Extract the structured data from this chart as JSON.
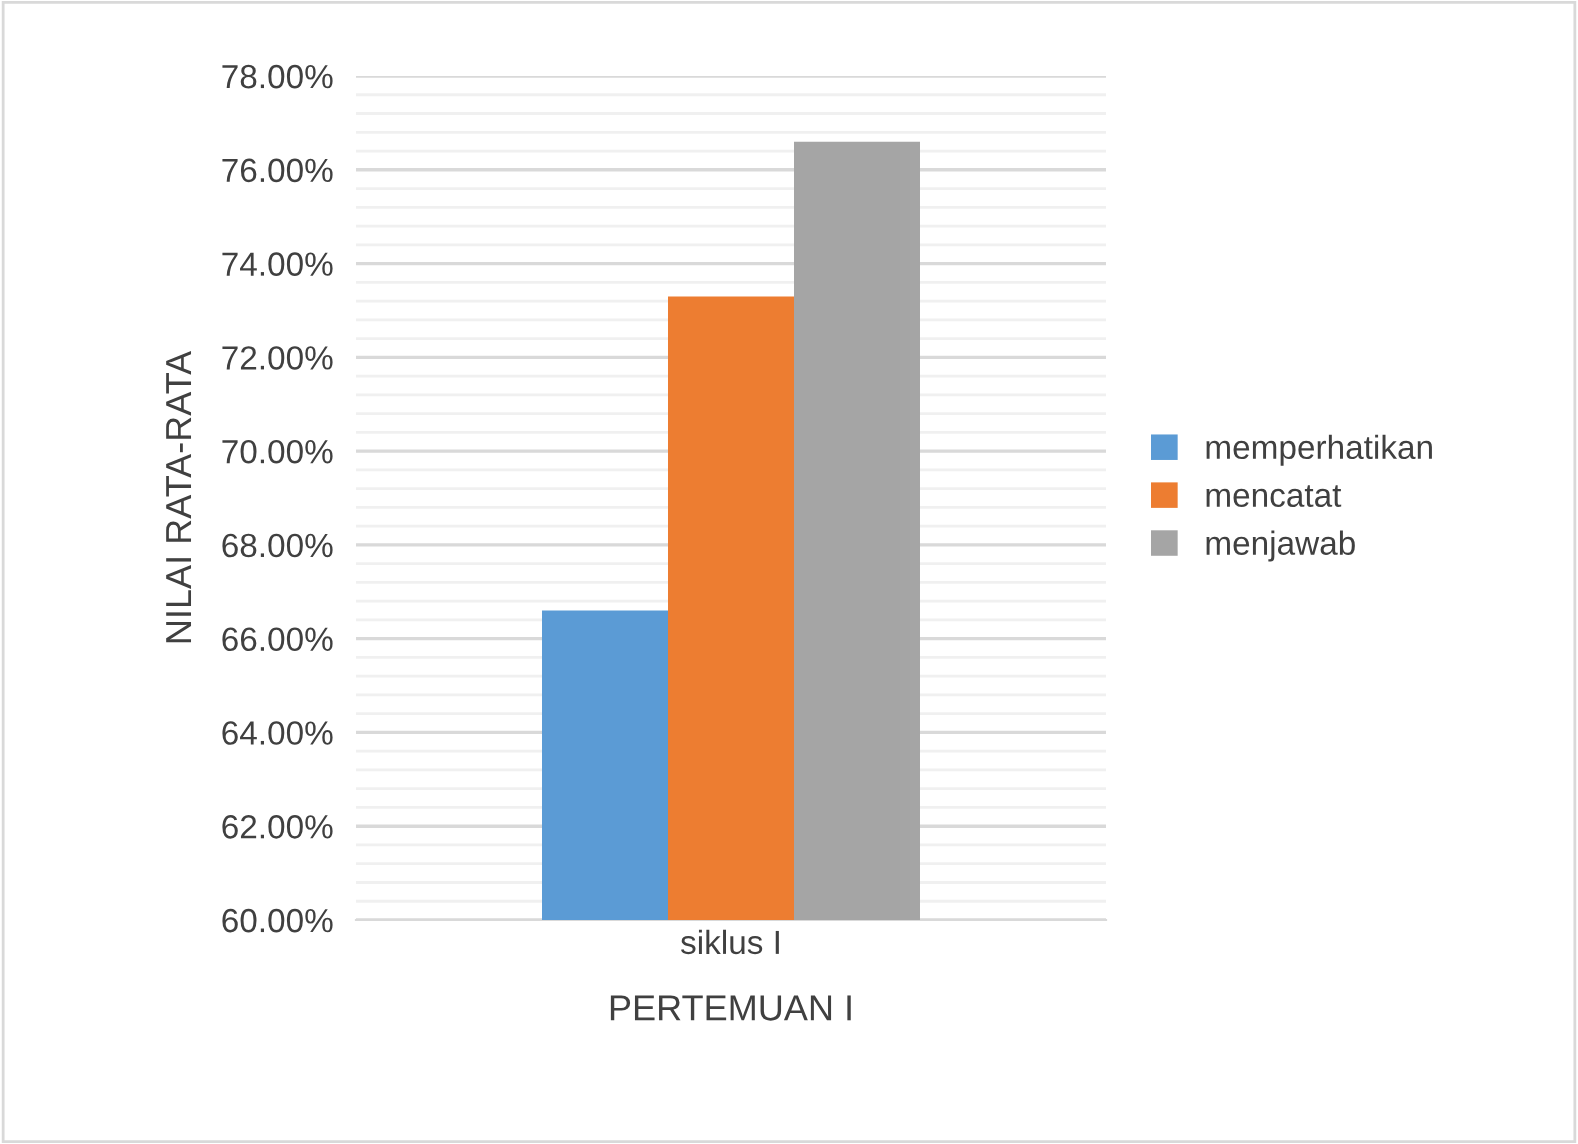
{
  "chart_data": {
    "type": "bar",
    "categories": [
      "siklus I"
    ],
    "series": [
      {
        "name": "memperhatikan",
        "color": "#5b9bd5",
        "values": [
          66.6
        ]
      },
      {
        "name": "mencatat",
        "color": "#ed7d31",
        "values": [
          73.3
        ]
      },
      {
        "name": "menjawab",
        "color": "#a5a5a5",
        "values": [
          76.6
        ]
      }
    ],
    "xlabel": "PERTEMUAN I",
    "ylabel": "NILAI RATA-RATA",
    "ylim": [
      60,
      78
    ],
    "yticks": [
      {
        "value": 60,
        "label": "60.00%"
      },
      {
        "value": 60.4,
        "label": null
      },
      {
        "value": 60.8,
        "label": null
      },
      {
        "value": 61.2,
        "label": null
      },
      {
        "value": 61.6,
        "label": null
      },
      {
        "value": 62,
        "label": "62.00%"
      },
      {
        "value": 62.4,
        "label": null
      },
      {
        "value": 62.8,
        "label": null
      },
      {
        "value": 63.2,
        "label": null
      },
      {
        "value": 63.6,
        "label": null
      },
      {
        "value": 64,
        "label": "64.00%"
      },
      {
        "value": 64.4,
        "label": null
      },
      {
        "value": 64.8,
        "label": null
      },
      {
        "value": 65.2,
        "label": null
      },
      {
        "value": 65.6,
        "label": null
      },
      {
        "value": 66,
        "label": "66.00%"
      },
      {
        "value": 66.4,
        "label": null
      },
      {
        "value": 66.8,
        "label": null
      },
      {
        "value": 67.2,
        "label": null
      },
      {
        "value": 67.6,
        "label": null
      },
      {
        "value": 68,
        "label": "68.00%"
      },
      {
        "value": 68.4,
        "label": null
      },
      {
        "value": 68.8,
        "label": null
      },
      {
        "value": 69.2,
        "label": null
      },
      {
        "value": 69.6,
        "label": null
      },
      {
        "value": 70,
        "label": "70.00%"
      },
      {
        "value": 70.4,
        "label": null
      },
      {
        "value": 70.8,
        "label": null
      },
      {
        "value": 71.2,
        "label": null
      },
      {
        "value": 71.6,
        "label": null
      },
      {
        "value": 72,
        "label": "72.00%"
      },
      {
        "value": 72.4,
        "label": null
      },
      {
        "value": 72.8,
        "label": null
      },
      {
        "value": 73.2,
        "label": null
      },
      {
        "value": 73.6,
        "label": null
      },
      {
        "value": 74,
        "label": "74.00%"
      },
      {
        "value": 74.4,
        "label": null
      },
      {
        "value": 74.8,
        "label": null
      },
      {
        "value": 75.2,
        "label": null
      },
      {
        "value": 75.6,
        "label": null
      },
      {
        "value": 76,
        "label": "76.00%"
      },
      {
        "value": 76.4,
        "label": null
      },
      {
        "value": 76.8,
        "label": null
      },
      {
        "value": 77.2,
        "label": null
      },
      {
        "value": 77.6,
        "label": null
      },
      {
        "value": 78,
        "label": "78.00%"
      }
    ],
    "grid": "y",
    "legend": "right"
  }
}
